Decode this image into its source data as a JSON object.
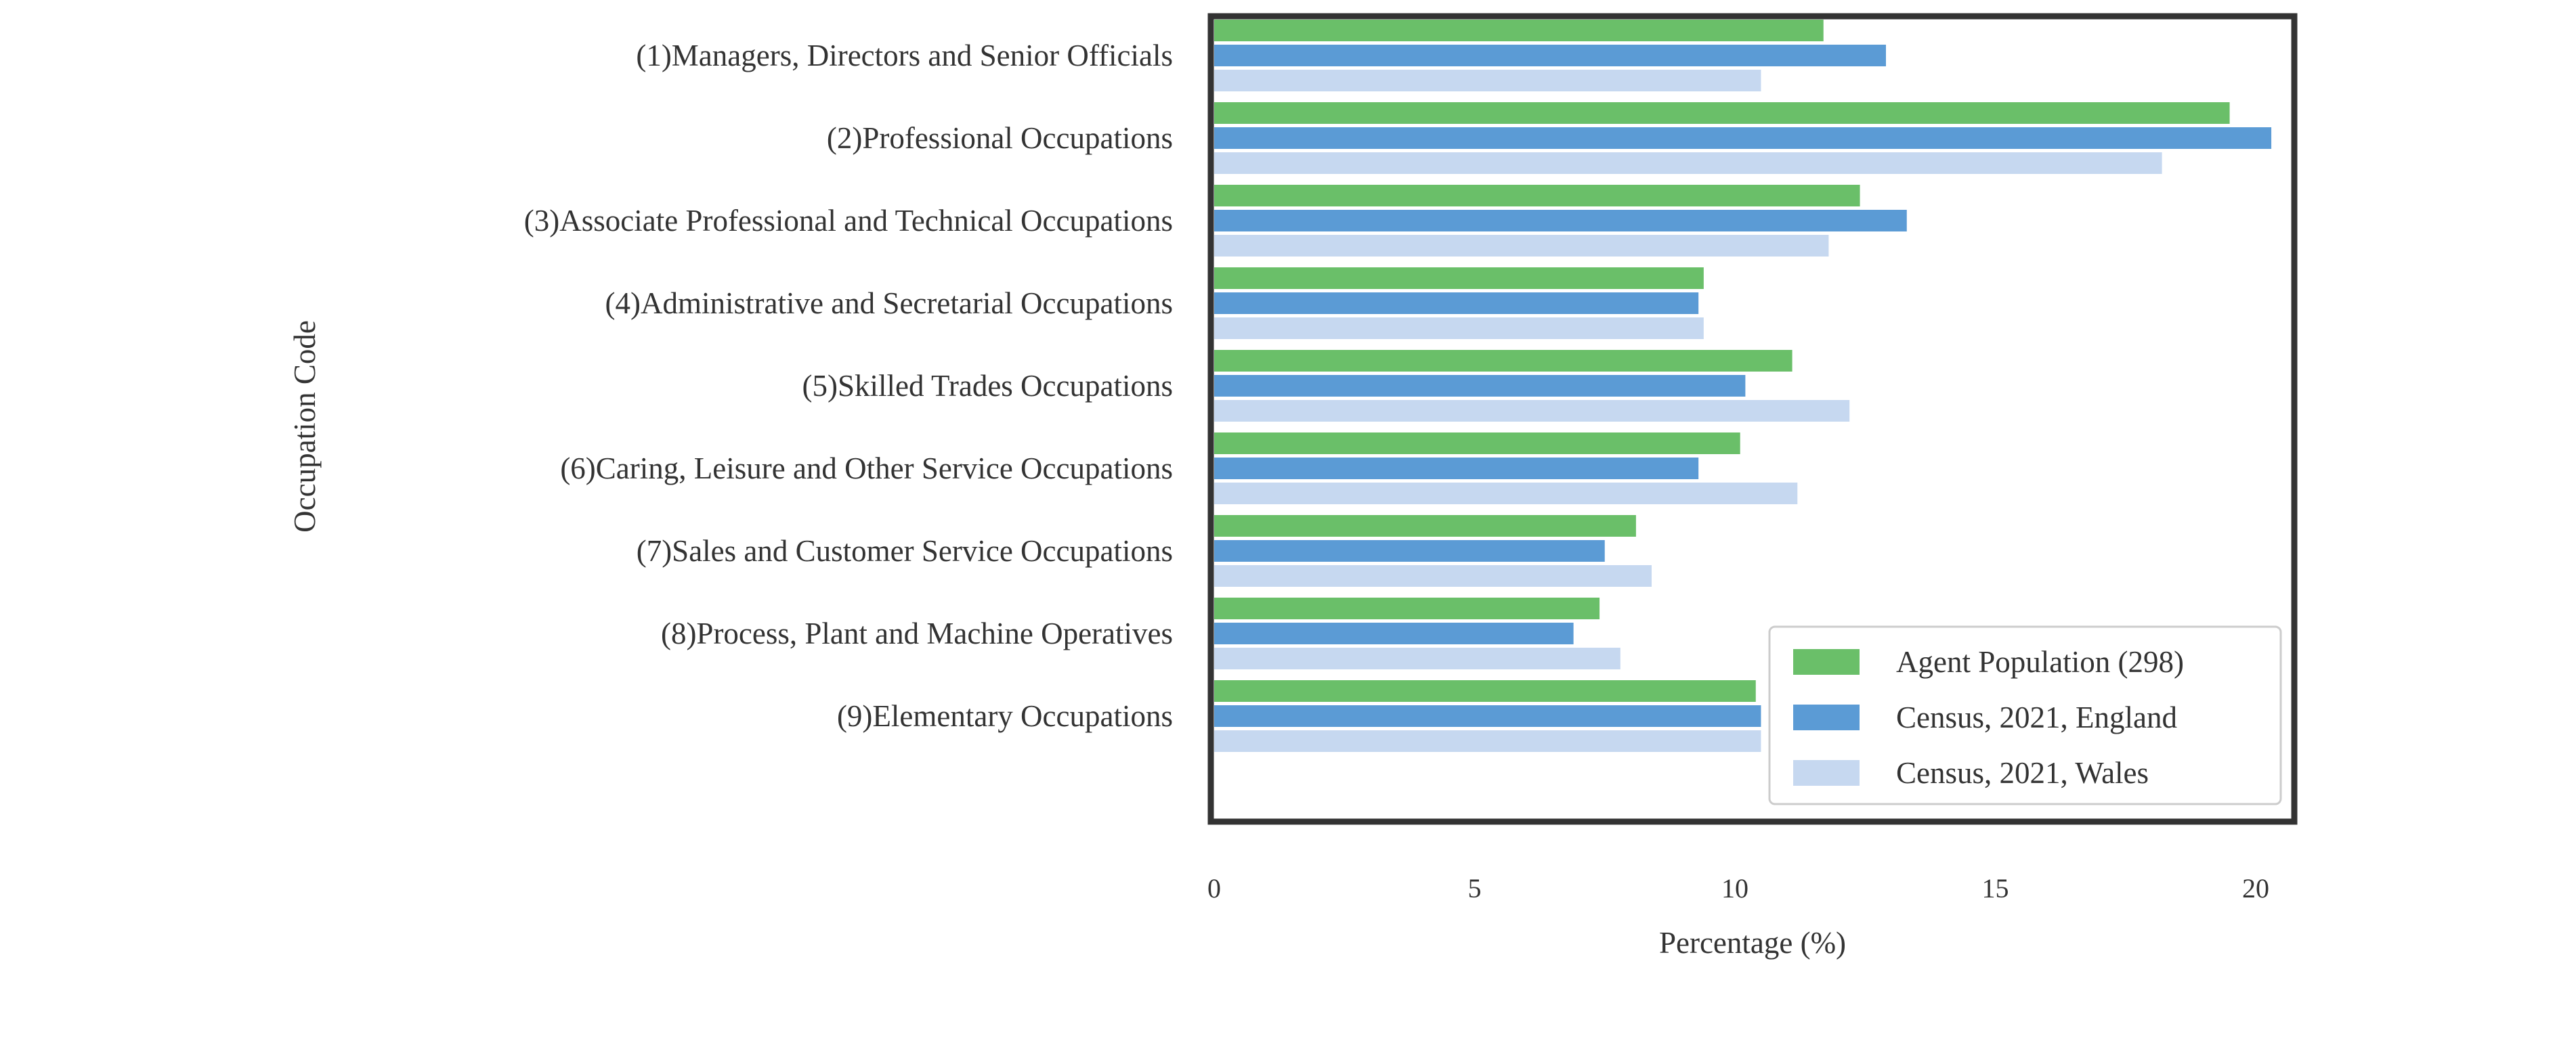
{
  "chart_data": {
    "type": "bar",
    "orientation": "horizontal",
    "xlabel": "Percentage (%)",
    "ylabel": "Occupation Code",
    "xlim": [
      0,
      21.3
    ],
    "xticks": [
      "0",
      "5",
      "10",
      "15",
      "20"
    ],
    "grid": false,
    "legend_position": "lower-right",
    "categories": [
      "(1)Managers, Directors and Senior Officials",
      "(2)Professional Occupations",
      "(3)Associate Professional and Technical Occupations",
      "(4)Administrative and Secretarial Occupations",
      "(5)Skilled Trades Occupations",
      "(6)Caring, Leisure and Other Service Occupations",
      "(7)Sales and Customer Service Occupations",
      "(8)Process, Plant and Machine Operatives",
      "(9)Elementary Occupations"
    ],
    "series": [
      {
        "name": "Agent Population (298)",
        "color": "#6abf69",
        "values": [
          11.7,
          19.5,
          12.4,
          9.4,
          11.1,
          10.1,
          8.1,
          7.4,
          10.4
        ]
      },
      {
        "name": "Census, 2021, England",
        "color": "#5b9bd5",
        "values": [
          12.9,
          20.3,
          13.3,
          9.3,
          10.2,
          9.3,
          7.5,
          6.9,
          10.5
        ]
      },
      {
        "name": "Census, 2021, Wales",
        "color": "#c6d8f0",
        "values": [
          10.5,
          18.2,
          11.8,
          9.4,
          12.2,
          11.2,
          8.4,
          7.8,
          10.5
        ]
      }
    ]
  }
}
